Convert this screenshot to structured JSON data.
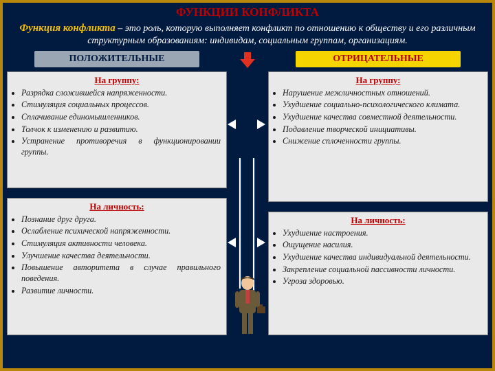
{
  "colors": {
    "bg_dark": "#001a40",
    "frame_border": "#b8860b",
    "title_text": "#c00000",
    "def_lead": "#f5c000",
    "def_body": "#ffffff",
    "hdr_pos_bg": "#9aa6b3",
    "hdr_pos_text": "#001a40",
    "hdr_neg_bg": "#f5d400",
    "hdr_neg_text": "#b80000",
    "panel_bg": "#e9e9e9",
    "panel_border": "#808080",
    "panel_title": "#c00000",
    "panel_text": "#1a1a1a",
    "suit": "#6b5a3a",
    "skin": "#f0c69a",
    "tie": "#c04040",
    "case": "#5a4020",
    "arrow_down": "#e03020"
  },
  "title": "ФУНКЦИИ КОНФЛИКТА",
  "definition": {
    "lead": "Функция конфликта",
    "body": " – это роль, которую выполняет конфликт по отношению к обществу и его различным структурным образованиям: индивидам, социальным группам, организациям."
  },
  "headers": {
    "positive": "ПОЛОЖИТЕЛЬНЫЕ",
    "negative": "ОТРИЦАТЕЛЬНЫЕ"
  },
  "panels": {
    "pos_group": {
      "title": "На группу:",
      "items": [
        "Разрядка сложившейся напряженности.",
        "Стимуляция социальных процессов.",
        "Сплачивание единомышленников.",
        "Толчок к изменению и развитию.",
        "Устранение противоречия в функционировании группы."
      ]
    },
    "pos_person": {
      "title": "На личность:",
      "items": [
        "Познание друг друга.",
        "Ослабление психической напряженности.",
        "Стимуляция активности человека.",
        "Улучшение качества деятельности.",
        "Повышение авторитета в случае правильного поведения.",
        "Развитие личности."
      ]
    },
    "neg_group": {
      "title": "На группу:",
      "items": [
        "Нарушение межличностных отношений.",
        "Ухудшение социально-психологического климата.",
        "Ухудшение качества совместной деятельности.",
        "Подавление творческой инициативы.",
        "Снижение сплоченности группы."
      ]
    },
    "neg_person": {
      "title": "На личность:",
      "items": [
        "Ухудшение настроения.",
        "Ощущение насилия.",
        "Ухудшение качества индивидуальной деятельности.",
        "Закрепление социальной пассивности личности.",
        "Угроза здоровью."
      ]
    }
  }
}
